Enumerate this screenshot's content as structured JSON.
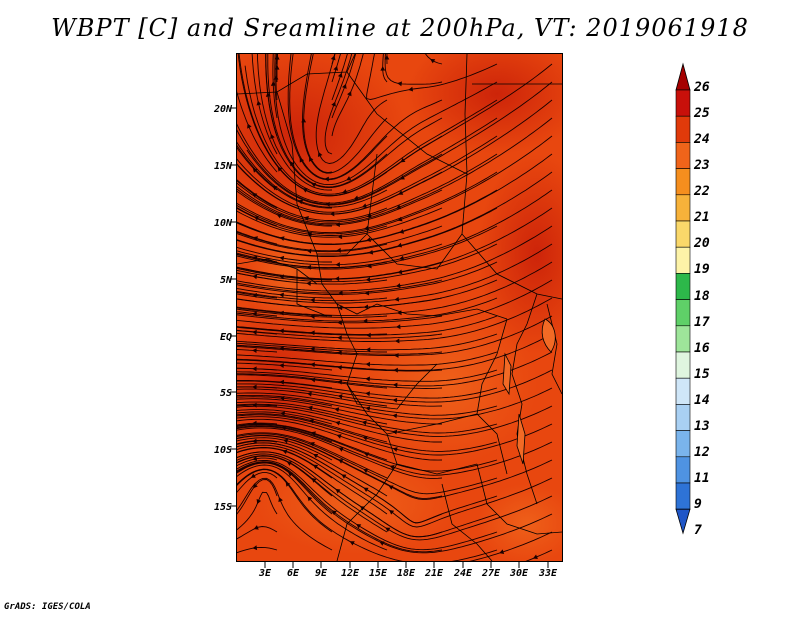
{
  "title": "WBPT [C] and Sreamline at 200hPa, VT: 2019061918",
  "credit": "GrADS: IGES/COLA",
  "map": {
    "lat_labels": [
      "20N",
      "15N",
      "10N",
      "5N",
      "EQ",
      "5S",
      "10S",
      "15S"
    ],
    "lon_labels": [
      "3E",
      "6E",
      "9E",
      "12E",
      "15E",
      "18E",
      "21E",
      "24E",
      "27E",
      "30E",
      "33E"
    ],
    "fill_color": "#e8470f",
    "streamline_color": "#1a0000"
  },
  "colorbar": {
    "labels": [
      "26",
      "25",
      "24",
      "23",
      "22",
      "21",
      "20",
      "19",
      "18",
      "17",
      "16",
      "15",
      "14",
      "13",
      "12",
      "11",
      "9",
      "7"
    ],
    "colors": [
      "#a50000",
      "#c8100a",
      "#e03a0a",
      "#f0641a",
      "#f58e1e",
      "#f7b23a",
      "#fad86a",
      "#fdf3a8",
      "#2db84a",
      "#5fd068",
      "#9ee59a",
      "#dff5df",
      "#cfe6f8",
      "#a9d0f3",
      "#7ab4ec",
      "#4f93e2",
      "#2e73d6",
      "#1f56c7"
    ]
  }
}
